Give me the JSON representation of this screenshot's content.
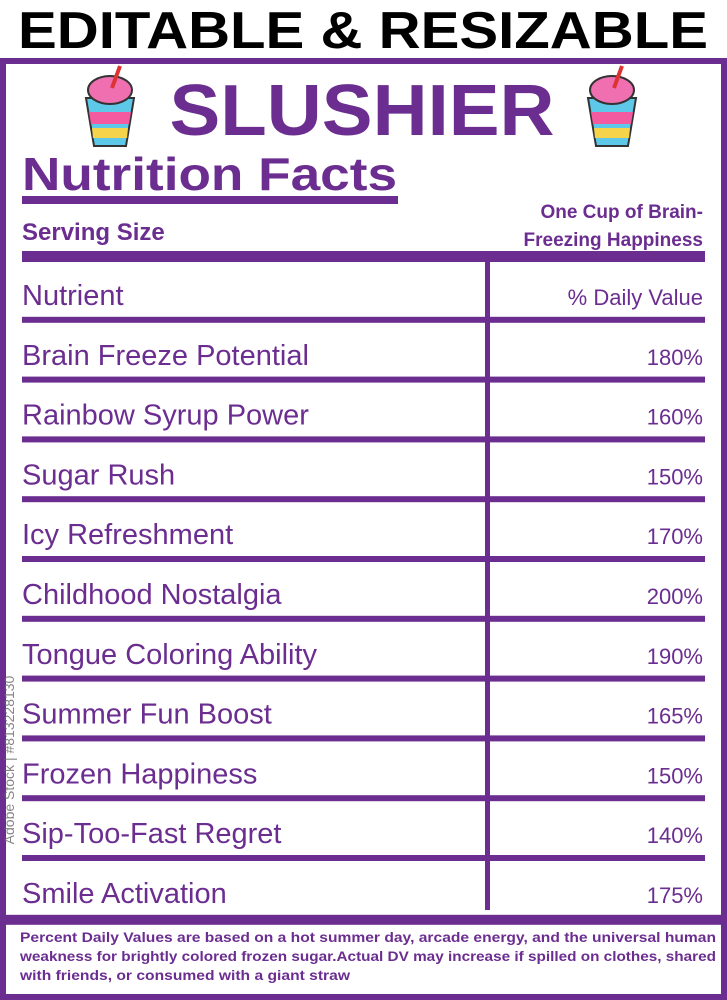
{
  "header": {
    "banner": "EDITABLE & RESIZABLE",
    "title": "SLUSHIER",
    "subtitle": "Nutrition Facts"
  },
  "serving": {
    "label": "Serving Size",
    "value_lines": [
      "One Cup of Brain-",
      "Freezing Happiness"
    ]
  },
  "table": {
    "columns": [
      "Nutrient",
      "% Daily Value"
    ],
    "rows": [
      [
        "Brain Freeze Potential",
        "180%"
      ],
      [
        "Rainbow Syrup Power",
        "160%"
      ],
      [
        "Sugar Rush",
        "150%"
      ],
      [
        "Icy Refreshment",
        "170%"
      ],
      [
        "Childhood Nostalgia",
        "200%"
      ],
      [
        "Tongue Coloring Ability",
        "190%"
      ],
      [
        "Summer Fun Boost",
        "165%"
      ],
      [
        "Frozen Happiness",
        "150%"
      ],
      [
        "Sip-Too-Fast Regret",
        "140%"
      ],
      [
        "Smile Activation",
        "175%"
      ]
    ]
  },
  "footnote": [
    "Percent Daily Values are based on a hot summer day, arcade energy, and the universal human",
    "weakness for brightly colored frozen sugar.Actual DV may increase if spilled on clothes, shared",
    "with friends, or consumed with a giant straw"
  ],
  "watermark": "Adobe Stock | #813228130"
}
